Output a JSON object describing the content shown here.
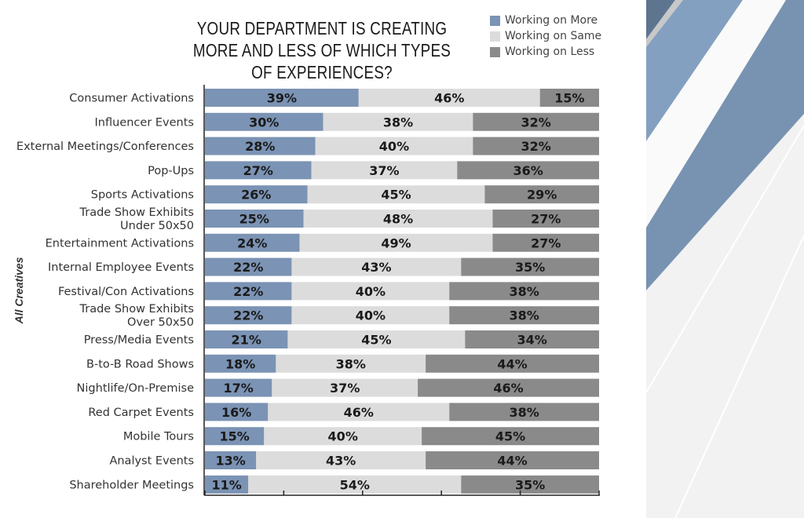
{
  "chart_data": {
    "type": "bar",
    "stacked": true,
    "orientation": "horizontal",
    "title": "YOUR DEPARTMENT IS CREATING MORE AND LESS OF WHICH TYPES OF EXPERIENCES?",
    "ylabel": "All Creatives",
    "xlim": [
      0,
      100
    ],
    "legend_position": "top-right",
    "categories": [
      "Consumer Activations",
      "Influencer Events",
      "External Meetings/Conferences",
      "Pop-Ups",
      "Sports Activations",
      "Trade Show Exhibits\nUnder 50x50",
      "Entertainment Activations",
      "Internal Employee Events",
      "Festival/Con Activations",
      "Trade Show Exhibits\nOver 50x50",
      "Press/Media Events",
      "B-to-B Road Shows",
      "Nightlife/On-Premise",
      "Red Carpet Events",
      "Mobile Tours",
      "Analyst Events",
      "Shareholder Meetings"
    ],
    "series": [
      {
        "name": "Working on More",
        "color": "#7b93b4",
        "values": [
          39,
          30,
          28,
          27,
          26,
          25,
          24,
          22,
          22,
          22,
          21,
          18,
          17,
          16,
          15,
          13,
          11
        ]
      },
      {
        "name": "Working on Same",
        "color": "#dcdcdc",
        "values": [
          46,
          38,
          40,
          37,
          45,
          48,
          49,
          43,
          40,
          40,
          45,
          38,
          37,
          46,
          40,
          43,
          54
        ]
      },
      {
        "name": "Working on Less",
        "color": "#8a8a8a",
        "values": [
          15,
          32,
          32,
          36,
          29,
          27,
          27,
          35,
          38,
          38,
          34,
          44,
          46,
          38,
          45,
          44,
          35
        ]
      }
    ]
  }
}
